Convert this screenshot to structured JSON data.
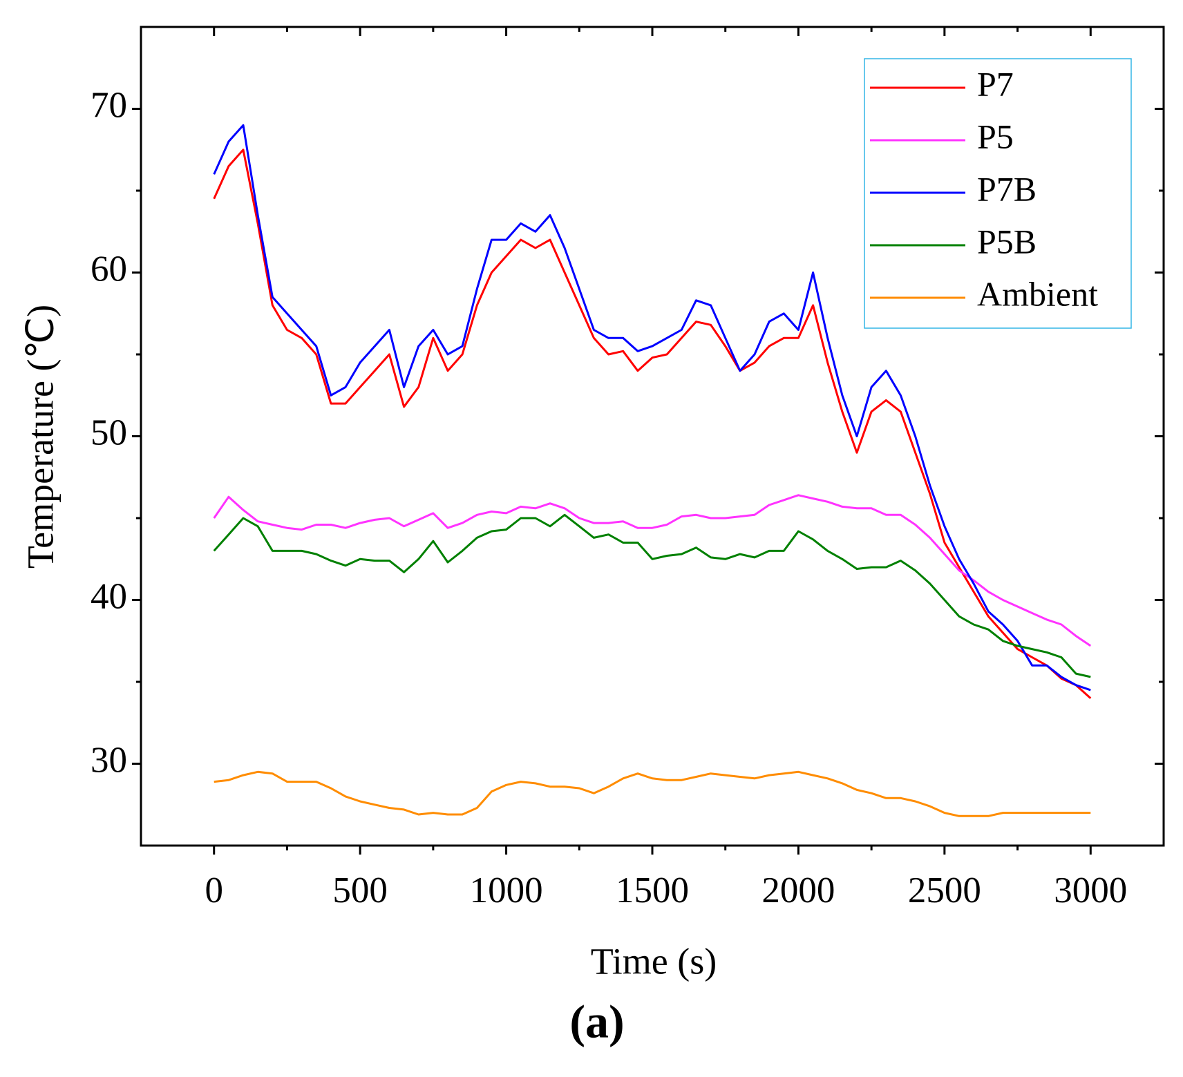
{
  "chart_data": {
    "type": "line",
    "xlabel": "Time (s)",
    "ylabel": "Temperature (℃)",
    "caption": "(a)",
    "x": [
      0,
      50,
      100,
      150,
      200,
      250,
      300,
      350,
      400,
      450,
      500,
      550,
      600,
      650,
      700,
      750,
      800,
      850,
      900,
      950,
      1000,
      1050,
      1100,
      1150,
      1200,
      1250,
      1300,
      1350,
      1400,
      1450,
      1500,
      1550,
      1600,
      1650,
      1700,
      1750,
      1800,
      1850,
      1900,
      1950,
      2000,
      2050,
      2100,
      2150,
      2200,
      2250,
      2300,
      2350,
      2400,
      2450,
      2500,
      2550,
      2600,
      2650,
      2700,
      2750,
      2800,
      2850,
      2900,
      2950,
      3000
    ],
    "series": [
      {
        "name": "P7",
        "color": "#ff0000",
        "values": [
          64.5,
          66.5,
          67.5,
          63,
          58,
          56.5,
          56,
          55,
          52,
          52,
          53,
          54,
          55,
          51.8,
          53,
          56,
          54,
          55,
          58,
          60,
          61,
          62,
          61.5,
          62,
          60,
          58,
          56,
          55,
          55.2,
          54,
          54.8,
          55,
          56,
          57,
          56.8,
          55.5,
          54,
          54.5,
          55.5,
          56,
          56,
          58,
          54.5,
          51.5,
          49,
          51.5,
          52.2,
          51.5,
          49,
          46.5,
          43.5,
          42,
          40.5,
          39,
          38,
          37,
          36.5,
          36,
          35.2,
          34.8,
          34
        ]
      },
      {
        "name": "P5",
        "color": "#ff33ff",
        "values": [
          45,
          46.3,
          45.5,
          44.8,
          44.6,
          44.4,
          44.3,
          44.6,
          44.6,
          44.4,
          44.7,
          44.9,
          45,
          44.5,
          44.9,
          45.3,
          44.4,
          44.7,
          45.2,
          45.4,
          45.3,
          45.7,
          45.6,
          45.9,
          45.6,
          45,
          44.7,
          44.7,
          44.8,
          44.4,
          44.4,
          44.6,
          45.1,
          45.2,
          45,
          45,
          45.1,
          45.2,
          45.8,
          46.1,
          46.4,
          46.2,
          46,
          45.7,
          45.6,
          45.6,
          45.2,
          45.2,
          44.6,
          43.8,
          42.8,
          41.8,
          41.2,
          40.5,
          40,
          39.6,
          39.2,
          38.8,
          38.5,
          37.8,
          37.2
        ]
      },
      {
        "name": "P7B",
        "color": "#0000ff",
        "values": [
          66,
          68,
          69,
          63.5,
          58.5,
          57.5,
          56.5,
          55.5,
          52.5,
          53,
          54.5,
          55.5,
          56.5,
          53,
          55.5,
          56.5,
          55,
          55.5,
          59,
          62,
          62,
          63,
          62.5,
          63.5,
          61.5,
          59,
          56.5,
          56,
          56,
          55.2,
          55.5,
          56,
          56.5,
          58.3,
          58,
          56,
          54,
          55,
          57,
          57.5,
          56.5,
          60,
          56,
          52.5,
          50,
          53,
          54,
          52.5,
          50,
          47,
          44.5,
          42.5,
          41,
          39.3,
          38.5,
          37.5,
          36,
          36,
          35.3,
          34.8,
          34.5
        ]
      },
      {
        "name": "P5B",
        "color": "#008000",
        "values": [
          43,
          44,
          45,
          44.5,
          43,
          43,
          43,
          42.8,
          42.4,
          42.1,
          42.5,
          42.4,
          42.4,
          41.7,
          42.5,
          43.6,
          42.3,
          43,
          43.8,
          44.2,
          44.3,
          45,
          45,
          44.5,
          45.2,
          44.5,
          43.8,
          44,
          43.5,
          43.5,
          42.5,
          42.7,
          42.8,
          43.2,
          42.6,
          42.5,
          42.8,
          42.6,
          43,
          43,
          44.2,
          43.7,
          43,
          42.5,
          41.9,
          42,
          42,
          42.4,
          41.8,
          41,
          40,
          39,
          38.5,
          38.2,
          37.5,
          37.2,
          37,
          36.8,
          36.5,
          35.5,
          35.3
        ]
      },
      {
        "name": "Ambient",
        "color": "#ff8c00",
        "values": [
          28.9,
          29,
          29.3,
          29.5,
          29.4,
          28.9,
          28.9,
          28.9,
          28.5,
          28,
          27.7,
          27.5,
          27.3,
          27.2,
          26.9,
          27,
          26.9,
          26.9,
          27.3,
          28.3,
          28.7,
          28.9,
          28.8,
          28.6,
          28.6,
          28.5,
          28.2,
          28.6,
          29.1,
          29.4,
          29.1,
          29,
          29,
          29.2,
          29.4,
          29.3,
          29.2,
          29.1,
          29.3,
          29.4,
          29.5,
          29.3,
          29.1,
          28.8,
          28.4,
          28.2,
          27.9,
          27.9,
          27.7,
          27.4,
          27,
          26.8,
          26.8,
          26.8,
          27,
          27,
          27,
          27,
          27,
          27,
          27
        ]
      }
    ],
    "xlim": [
      -250,
      3250
    ],
    "xticks": [
      0,
      500,
      1000,
      1500,
      2000,
      2500,
      3000
    ],
    "xminorticks": [
      250,
      750,
      1250,
      1750,
      2250,
      2750
    ],
    "ylim": [
      25,
      75
    ],
    "yticks": [
      30,
      40,
      50,
      60,
      70
    ],
    "yminorticks": [
      35,
      45,
      55,
      65
    ],
    "legend": "upper right",
    "legend_border": "#33b5e5"
  }
}
